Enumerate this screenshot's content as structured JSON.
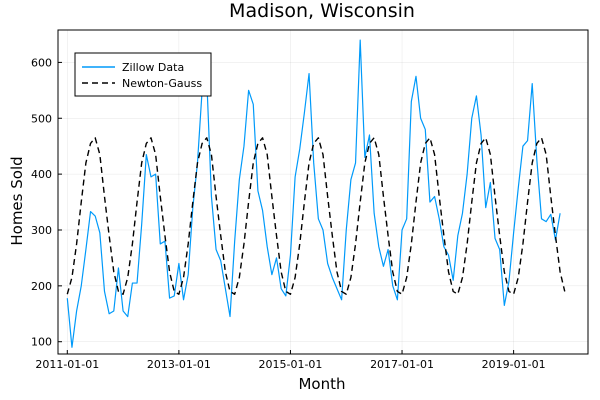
{
  "chart_data": {
    "type": "line",
    "title": "Madison, Wisconsin",
    "xlabel": "Month",
    "ylabel": "Homes Sold",
    "x_tick_labels": [
      "2011-01-01",
      "2013-01-01",
      "2015-01-01",
      "2017-01-01",
      "2019-01-01"
    ],
    "y_ticks": [
      100,
      200,
      300,
      400,
      500,
      600
    ],
    "xlim": [
      "2010-11-01",
      "2020-05-01"
    ],
    "ylim": [
      78,
      658
    ],
    "grid": true,
    "legend_position": "top-left",
    "start_month": "2011-01",
    "series": [
      {
        "name": "Zillow Data",
        "color": "#009AFA",
        "style": "solid",
        "values": [
          178,
          90,
          155,
          200,
          265,
          333,
          325,
          295,
          190,
          150,
          155,
          232,
          155,
          145,
          205,
          205,
          310,
          435,
          395,
          400,
          275,
          280,
          178,
          182,
          240,
          175,
          220,
          340,
          420,
          550,
          570,
          360,
          265,
          245,
          195,
          145,
          280,
          390,
          450,
          550,
          525,
          370,
          335,
          270,
          220,
          250,
          195,
          182,
          255,
          395,
          445,
          510,
          580,
          420,
          320,
          300,
          240,
          215,
          195,
          175,
          300,
          390,
          420,
          640,
          430,
          470,
          330,
          270,
          235,
          265,
          200,
          175,
          300,
          320,
          530,
          575,
          500,
          480,
          350,
          360,
          320,
          270,
          255,
          210,
          290,
          330,
          400,
          500,
          540,
          470,
          340,
          385,
          285,
          265,
          165,
          208,
          295,
          375,
          450,
          460,
          562,
          425,
          320,
          315,
          328,
          282,
          330
        ]
      },
      {
        "name": "Newton-Gauss",
        "color": "#000000",
        "style": "dashed",
        "values": [
          185,
          215,
          275,
          350,
          420,
          455,
          465,
          435,
          360,
          290,
          225,
          190,
          185,
          215,
          275,
          350,
          420,
          455,
          465,
          435,
          360,
          290,
          225,
          190,
          185,
          215,
          275,
          350,
          420,
          455,
          465,
          435,
          360,
          290,
          225,
          190,
          185,
          215,
          275,
          350,
          420,
          455,
          465,
          435,
          360,
          290,
          225,
          190,
          185,
          215,
          275,
          350,
          420,
          455,
          465,
          435,
          360,
          290,
          225,
          190,
          185,
          215,
          275,
          350,
          420,
          455,
          465,
          435,
          360,
          290,
          225,
          190,
          185,
          215,
          275,
          350,
          420,
          455,
          465,
          435,
          360,
          290,
          225,
          190,
          185,
          215,
          275,
          350,
          420,
          455,
          465,
          435,
          360,
          290,
          225,
          190,
          185,
          215,
          275,
          350,
          420,
          455,
          465,
          435,
          360,
          290,
          225,
          190
        ]
      }
    ]
  }
}
